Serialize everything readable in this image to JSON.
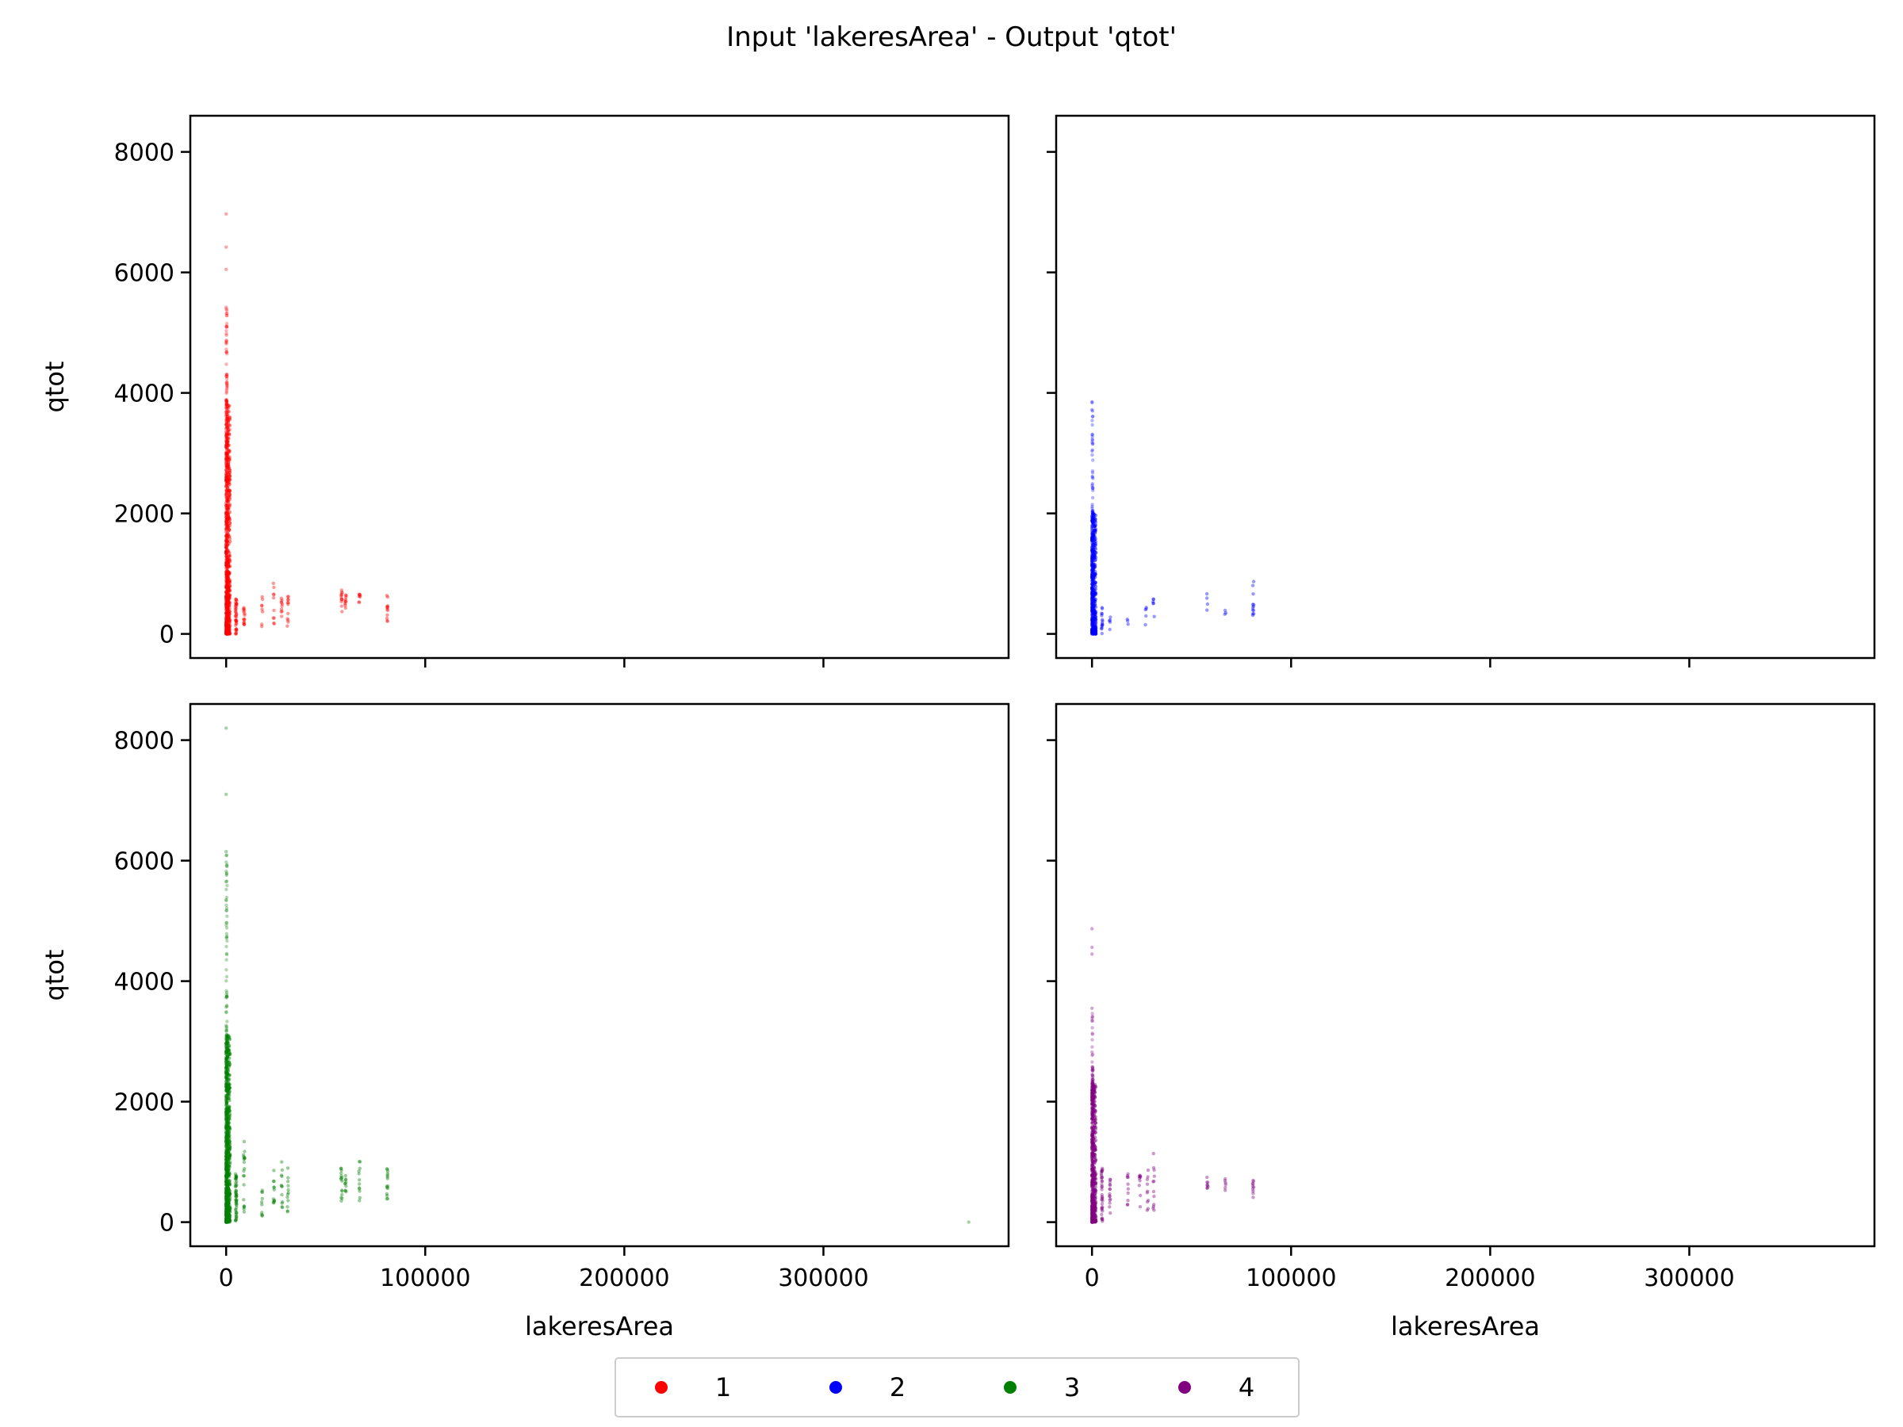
{
  "figure": {
    "title": "Input 'lakeresArea' - Output 'qtot'"
  },
  "legend": {
    "items": [
      {
        "label": "1",
        "color": "#ff0000"
      },
      {
        "label": "2",
        "color": "#0000ff"
      },
      {
        "label": "3",
        "color": "#008000"
      },
      {
        "label": "4",
        "color": "#800080"
      }
    ]
  },
  "chart_data": [
    {
      "type": "scatter",
      "series": [
        {
          "name": "1",
          "color": "#ff0000"
        }
      ],
      "xlabel": "",
      "ylabel": "qtot",
      "xlim": [
        -18000,
        393000
      ],
      "ylim": [
        -400,
        8600
      ],
      "xticks": [
        0,
        100000,
        200000,
        300000
      ],
      "yticks": [
        0,
        2000,
        4000,
        6000,
        8000
      ],
      "show_xticklabels": false,
      "show_yticklabels": true,
      "points": {
        "dense_x_max": 2000,
        "dense_y_max": 3800,
        "dense_count": 750,
        "tail_x_max": 500,
        "tail_y": [
          3800,
          5400
        ],
        "tail_count": 60,
        "extremes": [
          [
            0,
            6970
          ],
          [
            0,
            6420
          ],
          [
            0,
            6050
          ],
          [
            0,
            5420
          ]
        ],
        "clusters": [
          {
            "x": 5000,
            "y": [
              0,
              600
            ],
            "n": 40
          },
          {
            "x": 9000,
            "y": [
              150,
              450
            ],
            "n": 15
          },
          {
            "x": 18000,
            "y": [
              100,
              650
            ],
            "n": 8
          },
          {
            "x": 24000,
            "y": [
              150,
              850
            ],
            "n": 10
          },
          {
            "x": 28000,
            "y": [
              150,
              900
            ],
            "n": 10
          },
          {
            "x": 31000,
            "y": [
              80,
              650
            ],
            "n": 12
          },
          {
            "x": 58000,
            "y": [
              350,
              750
            ],
            "n": 12
          },
          {
            "x": 60000,
            "y": [
              400,
              700
            ],
            "n": 10
          },
          {
            "x": 67000,
            "y": [
              350,
              700
            ],
            "n": 8
          },
          {
            "x": 81000,
            "y": [
              200,
              700
            ],
            "n": 12
          }
        ]
      }
    },
    {
      "type": "scatter",
      "series": [
        {
          "name": "2",
          "color": "#0000ff"
        }
      ],
      "xlabel": "",
      "ylabel": "",
      "xlim": [
        -18000,
        393000
      ],
      "ylim": [
        -400,
        8600
      ],
      "xticks": [
        0,
        100000,
        200000,
        300000
      ],
      "yticks": [
        0,
        2000,
        4000,
        6000,
        8000
      ],
      "show_xticklabels": false,
      "show_yticklabels": false,
      "points": {
        "dense_x_max": 2000,
        "dense_y_max": 2000,
        "dense_count": 500,
        "tail_x_max": 500,
        "tail_y": [
          2000,
          3850
        ],
        "tail_count": 40,
        "extremes": [
          [
            0,
            3850
          ],
          [
            0,
            3720
          ]
        ],
        "clusters": [
          {
            "x": 5000,
            "y": [
              0,
              450
            ],
            "n": 15
          },
          {
            "x": 9000,
            "y": [
              50,
              300
            ],
            "n": 5
          },
          {
            "x": 18000,
            "y": [
              150,
              250
            ],
            "n": 3
          },
          {
            "x": 27000,
            "y": [
              100,
              500
            ],
            "n": 5
          },
          {
            "x": 31000,
            "y": [
              200,
              600
            ],
            "n": 6
          },
          {
            "x": 58000,
            "y": [
              350,
              720
            ],
            "n": 4
          },
          {
            "x": 67000,
            "y": [
              300,
              400
            ],
            "n": 3
          },
          {
            "x": 81000,
            "y": [
              300,
              870
            ],
            "n": 12
          }
        ]
      }
    },
    {
      "type": "scatter",
      "series": [
        {
          "name": "3",
          "color": "#008000"
        }
      ],
      "xlabel": "lakeresArea",
      "ylabel": "qtot",
      "xlim": [
        -18000,
        393000
      ],
      "ylim": [
        -400,
        8600
      ],
      "xticks": [
        0,
        100000,
        200000,
        300000
      ],
      "yticks": [
        0,
        2000,
        4000,
        6000,
        8000
      ],
      "show_xticklabels": true,
      "show_yticklabels": true,
      "points": {
        "dense_x_max": 2000,
        "dense_y_max": 3100,
        "dense_count": 800,
        "tail_x_max": 500,
        "tail_y": [
          3100,
          6100
        ],
        "tail_count": 60,
        "extremes": [
          [
            0,
            8200
          ],
          [
            0,
            7100
          ],
          [
            0,
            6150
          ],
          [
            0,
            5650
          ],
          [
            373000,
            0
          ]
        ],
        "clusters": [
          {
            "x": 5000,
            "y": [
              0,
              800
            ],
            "n": 50
          },
          {
            "x": 9000,
            "y": [
              100,
              1400
            ],
            "n": 20
          },
          {
            "x": 18000,
            "y": [
              100,
              700
            ],
            "n": 10
          },
          {
            "x": 24000,
            "y": [
              150,
              900
            ],
            "n": 12
          },
          {
            "x": 28000,
            "y": [
              150,
              1000
            ],
            "n": 12
          },
          {
            "x": 31000,
            "y": [
              150,
              900
            ],
            "n": 12
          },
          {
            "x": 58000,
            "y": [
              350,
              900
            ],
            "n": 15
          },
          {
            "x": 60000,
            "y": [
              400,
              800
            ],
            "n": 10
          },
          {
            "x": 67000,
            "y": [
              300,
              1350
            ],
            "n": 12
          },
          {
            "x": 81000,
            "y": [
              300,
              900
            ],
            "n": 15
          }
        ]
      }
    },
    {
      "type": "scatter",
      "series": [
        {
          "name": "4",
          "color": "#800080"
        }
      ],
      "xlabel": "lakeresArea",
      "ylabel": "",
      "xlim": [
        -18000,
        393000
      ],
      "ylim": [
        -400,
        8600
      ],
      "xticks": [
        0,
        100000,
        200000,
        300000
      ],
      "yticks": [
        0,
        2000,
        4000,
        6000,
        8000
      ],
      "show_xticklabels": true,
      "show_yticklabels": false,
      "points": {
        "dense_x_max": 2000,
        "dense_y_max": 2300,
        "dense_count": 550,
        "tail_x_max": 500,
        "tail_y": [
          2300,
          3500
        ],
        "tail_count": 40,
        "extremes": [
          [
            0,
            4870
          ],
          [
            0,
            4560
          ],
          [
            0,
            4450
          ],
          [
            0,
            3550
          ]
        ],
        "clusters": [
          {
            "x": 5000,
            "y": [
              0,
              900
            ],
            "n": 35
          },
          {
            "x": 9000,
            "y": [
              100,
              800
            ],
            "n": 15
          },
          {
            "x": 18000,
            "y": [
              100,
              900
            ],
            "n": 10
          },
          {
            "x": 24000,
            "y": [
              100,
              1000
            ],
            "n": 10
          },
          {
            "x": 28000,
            "y": [
              100,
              1000
            ],
            "n": 10
          },
          {
            "x": 31000,
            "y": [
              100,
              1150
            ],
            "n": 12
          },
          {
            "x": 58000,
            "y": [
              550,
              750
            ],
            "n": 8
          },
          {
            "x": 67000,
            "y": [
              350,
              750
            ],
            "n": 6
          },
          {
            "x": 81000,
            "y": [
              400,
              800
            ],
            "n": 10
          }
        ]
      }
    }
  ]
}
